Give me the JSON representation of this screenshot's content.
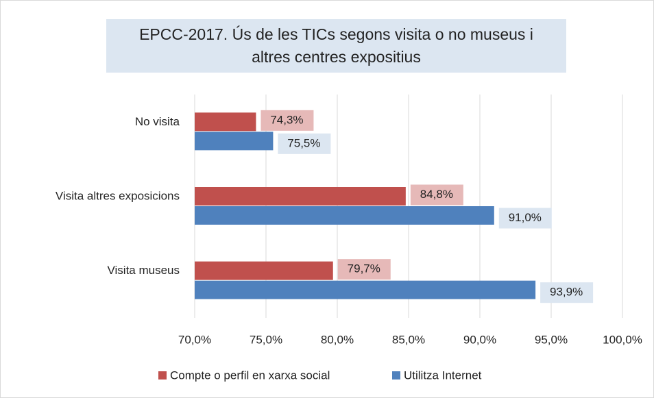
{
  "chart_data": {
    "type": "hbar",
    "title": "EPCC-2017. Ús de les TICs segons visita o no museus i altres centres expositius",
    "categories": [
      "No visita",
      "Visita altres exposicions",
      "Visita museus"
    ],
    "series": [
      {
        "name": "Compte o perfil en xarxa social",
        "color": "#c0504d",
        "label_bg": "#e6b9b8",
        "values": [
          74.3,
          84.8,
          79.7
        ],
        "value_labels": [
          "74,3%",
          "84,8%",
          "79,7%"
        ]
      },
      {
        "name": "Utilitza Internet",
        "color": "#4f81bd",
        "label_bg": "#dce6f1",
        "values": [
          75.5,
          91.0,
          93.9
        ],
        "value_labels": [
          "75,5%",
          "91,0%",
          "93,9%"
        ]
      }
    ],
    "xlim": [
      70,
      100
    ],
    "xticks": [
      {
        "value": 70,
        "label": "70,0%"
      },
      {
        "value": 75,
        "label": "75,0%"
      },
      {
        "value": 80,
        "label": "80,0%"
      },
      {
        "value": 85,
        "label": "85,0%"
      },
      {
        "value": 90,
        "label": "90,0%"
      },
      {
        "value": 95,
        "label": "95,0%"
      },
      {
        "value": 100,
        "label": "100,0%"
      }
    ],
    "grid": true,
    "legend": "bottom"
  }
}
